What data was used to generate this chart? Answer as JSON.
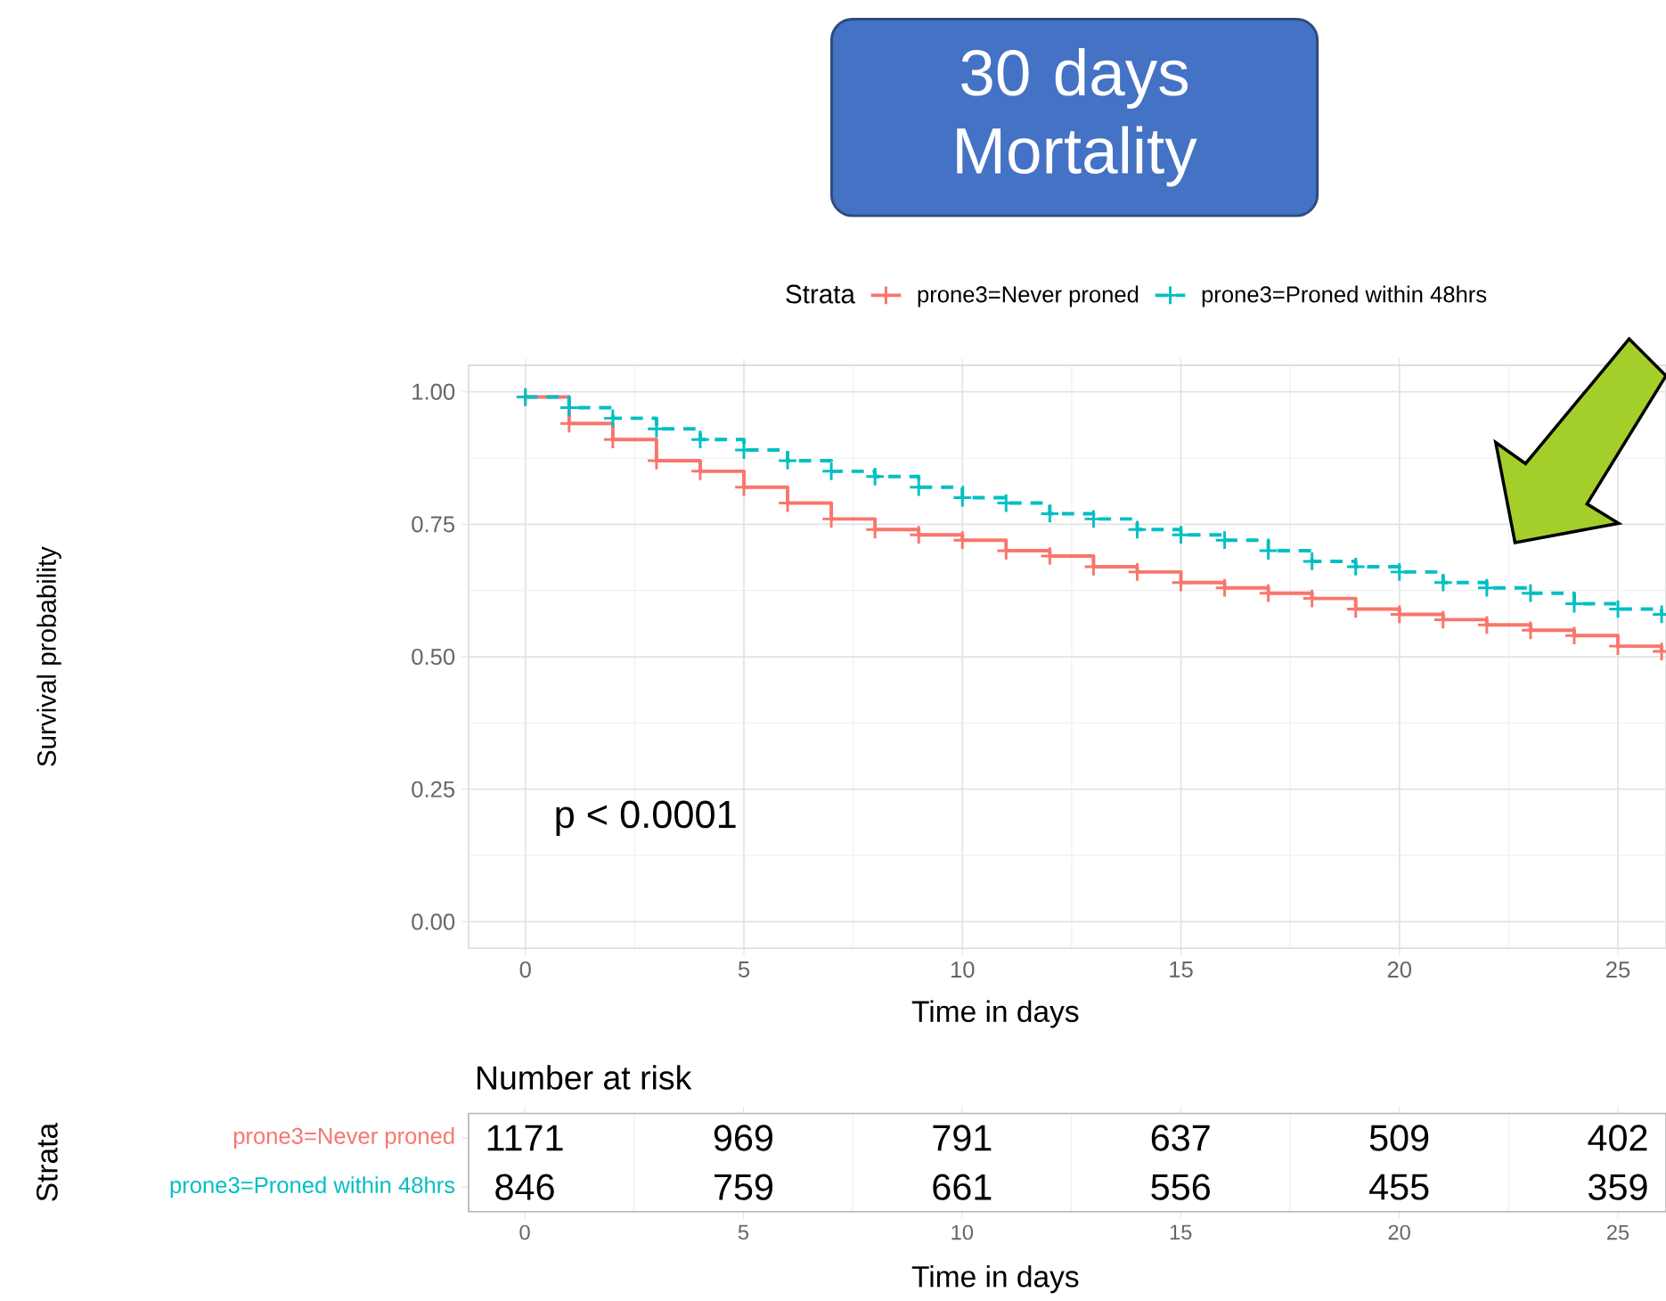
{
  "chart_data": [
    {
      "type": "step",
      "title": "30 days Mortality",
      "xlabel": "Time in days",
      "ylabel": "Survival probability",
      "legend_title": "Strata",
      "annotations": [
        "p < 0.0001"
      ],
      "x": [
        0,
        1,
        2,
        3,
        4,
        5,
        6,
        7,
        8,
        9,
        10,
        11,
        12,
        13,
        14,
        15,
        16,
        17,
        18,
        19,
        20,
        21,
        22,
        23,
        24,
        25,
        26
      ],
      "series": [
        {
          "name": "prone3=Never proned",
          "color": "#f8766d",
          "line_style": "solid",
          "values": [
            0.99,
            0.94,
            0.91,
            0.87,
            0.85,
            0.82,
            0.79,
            0.76,
            0.74,
            0.73,
            0.72,
            0.7,
            0.69,
            0.67,
            0.66,
            0.64,
            0.63,
            0.62,
            0.61,
            0.59,
            0.58,
            0.57,
            0.56,
            0.55,
            0.54,
            0.52,
            0.51
          ]
        },
        {
          "name": "prone3=Proned within 48hrs",
          "color": "#00bfc4",
          "line_style": "dashed",
          "values": [
            0.99,
            0.97,
            0.95,
            0.93,
            0.91,
            0.89,
            0.87,
            0.85,
            0.84,
            0.82,
            0.8,
            0.79,
            0.77,
            0.76,
            0.74,
            0.73,
            0.72,
            0.7,
            0.68,
            0.67,
            0.66,
            0.64,
            0.63,
            0.62,
            0.6,
            0.59,
            0.58
          ]
        }
      ],
      "xlim": [
        -1.3,
        26.1
      ],
      "ylim": [
        -0.05,
        1.05
      ],
      "xticks": [
        0,
        5,
        10,
        15,
        20,
        25
      ],
      "yticks": [
        {
          "value": 0,
          "label": "0.00"
        },
        {
          "value": 0.25,
          "label": "0.25"
        },
        {
          "value": 0.5,
          "label": "0.50"
        },
        {
          "value": 0.75,
          "label": "0.75"
        },
        {
          "value": 1,
          "label": "1.00"
        }
      ],
      "grid": true,
      "legend": "top",
      "marker": "cross"
    },
    {
      "type": "heatmap",
      "title": "Number at risk",
      "xlabel": "Time in days",
      "ylabel": "Strata",
      "categories": [
        "0",
        "5",
        "10",
        "15",
        "20",
        "25"
      ],
      "y_categories": [
        "prone3=Never proned",
        "prone3=Proned within 48hrs"
      ],
      "cells": [
        [
          1171,
          969,
          791,
          637,
          509,
          402
        ],
        [
          846,
          759,
          661,
          556,
          455,
          359
        ]
      ],
      "grid": "x",
      "data_labels": true
    }
  ]
}
